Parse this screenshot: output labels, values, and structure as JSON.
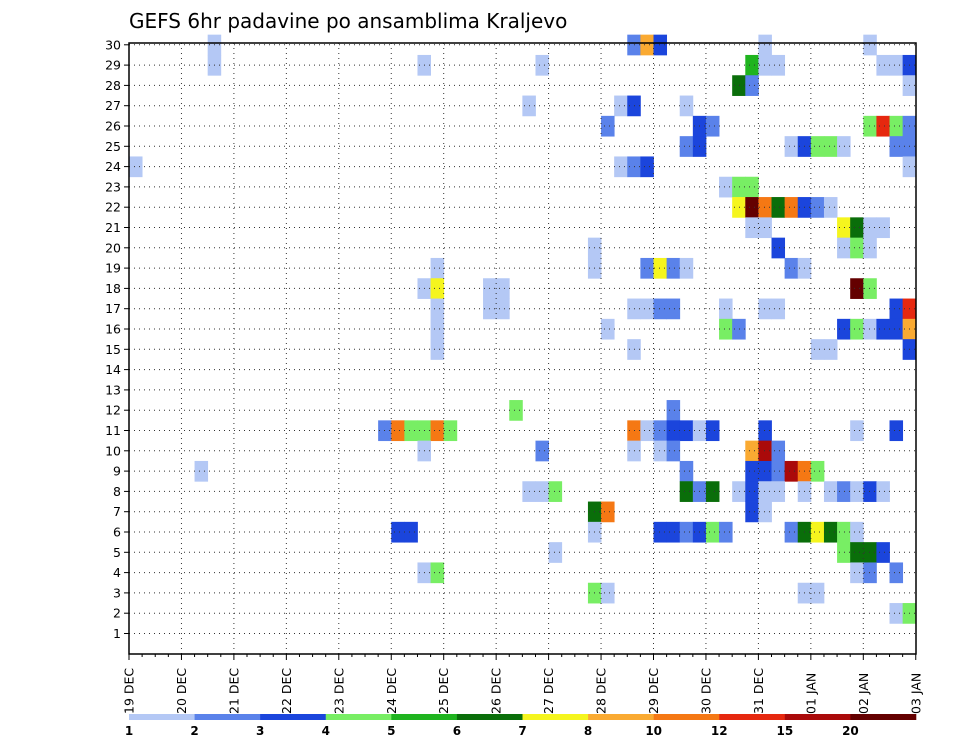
{
  "chart_data": {
    "type": "heatmap",
    "title": "GEFS 6hr padavine po ansamblima Kraljevo",
    "xlabel": "",
    "ylabel": "",
    "y_ticks": [
      "1",
      "2",
      "3",
      "4",
      "5",
      "6",
      "7",
      "8",
      "9",
      "10",
      "11",
      "12",
      "13",
      "14",
      "15",
      "16",
      "17",
      "18",
      "19",
      "20",
      "21",
      "22",
      "23",
      "24",
      "25",
      "26",
      "27",
      "28",
      "29",
      "30"
    ],
    "x_ticks": [
      "19 DEC",
      "20 DEC",
      "21 DEC",
      "22 DEC",
      "23 DEC",
      "24 DEC",
      "25 DEC",
      "26 DEC",
      "27 DEC",
      "28 DEC",
      "29 DEC",
      "30 DEC",
      "31 DEC",
      "01 JAN",
      "02 JAN",
      "03 JAN"
    ],
    "x_unit": "6-hour step from 19 DEC 00UTC",
    "legend": {
      "labels": [
        "1",
        "2",
        "3",
        "4",
        "5",
        "6",
        "7",
        "8",
        "10",
        "12",
        "15",
        "20"
      ],
      "colors": [
        "#b4c8f5",
        "#5a82ea",
        "#1b45dc",
        "#78ee64",
        "#1fb41f",
        "#0a6e0a",
        "#f5f51e",
        "#faaa32",
        "#f57814",
        "#e6280f",
        "#aa0a0a",
        "#640000"
      ]
    },
    "grid": true,
    "cells": [
      {
        "x": 7,
        "y": 29,
        "v": 1
      },
      {
        "x": 7,
        "y": 30,
        "v": 1
      },
      {
        "x": 23,
        "y": 29,
        "v": 1
      },
      {
        "x": 32,
        "y": 29,
        "v": 1
      },
      {
        "x": 49,
        "y": 30,
        "v": 1
      },
      {
        "x": 57,
        "y": 30,
        "v": 1
      },
      {
        "x": 59,
        "y": 29,
        "v": 1
      },
      {
        "x": 39,
        "y": 30,
        "v": 2
      },
      {
        "x": 40,
        "y": 30,
        "v": 8
      },
      {
        "x": 41,
        "y": 30,
        "v": 3
      },
      {
        "x": 48,
        "y": 29,
        "v": 5
      },
      {
        "x": 49,
        "y": 29,
        "v": 1
      },
      {
        "x": 50,
        "y": 29,
        "v": 1
      },
      {
        "x": 58,
        "y": 29,
        "v": 1
      },
      {
        "x": 60,
        "y": 29,
        "v": 3
      },
      {
        "x": 47,
        "y": 28,
        "v": 6
      },
      {
        "x": 48,
        "y": 28,
        "v": 2
      },
      {
        "x": 60,
        "y": 28,
        "v": 1
      },
      {
        "x": 31,
        "y": 27,
        "v": 1
      },
      {
        "x": 38,
        "y": 27,
        "v": 1
      },
      {
        "x": 39,
        "y": 27,
        "v": 3
      },
      {
        "x": 43,
        "y": 27,
        "v": 1
      },
      {
        "x": 37,
        "y": 26,
        "v": 2
      },
      {
        "x": 44,
        "y": 26,
        "v": 3
      },
      {
        "x": 45,
        "y": 26,
        "v": 2
      },
      {
        "x": 57,
        "y": 26,
        "v": 4
      },
      {
        "x": 58,
        "y": 26,
        "v": 12
      },
      {
        "x": 59,
        "y": 26,
        "v": 4
      },
      {
        "x": 60,
        "y": 26,
        "v": 2
      },
      {
        "x": 43,
        "y": 25,
        "v": 2
      },
      {
        "x": 44,
        "y": 25,
        "v": 3
      },
      {
        "x": 51,
        "y": 25,
        "v": 1
      },
      {
        "x": 52,
        "y": 25,
        "v": 3
      },
      {
        "x": 53,
        "y": 25,
        "v": 4
      },
      {
        "x": 54,
        "y": 25,
        "v": 4
      },
      {
        "x": 55,
        "y": 25,
        "v": 1
      },
      {
        "x": 59,
        "y": 25,
        "v": 2
      },
      {
        "x": 60,
        "y": 25,
        "v": 2
      },
      {
        "x": 1,
        "y": 24,
        "v": 1
      },
      {
        "x": 38,
        "y": 24,
        "v": 1
      },
      {
        "x": 39,
        "y": 24,
        "v": 2
      },
      {
        "x": 40,
        "y": 24,
        "v": 3
      },
      {
        "x": 60,
        "y": 24,
        "v": 1
      },
      {
        "x": 46,
        "y": 23,
        "v": 1
      },
      {
        "x": 47,
        "y": 23,
        "v": 4
      },
      {
        "x": 48,
        "y": 23,
        "v": 4
      },
      {
        "x": 47,
        "y": 22,
        "v": 7
      },
      {
        "x": 48,
        "y": 22,
        "v": 20
      },
      {
        "x": 49,
        "y": 22,
        "v": 10
      },
      {
        "x": 50,
        "y": 22,
        "v": 6
      },
      {
        "x": 51,
        "y": 22,
        "v": 10
      },
      {
        "x": 52,
        "y": 22,
        "v": 3
      },
      {
        "x": 53,
        "y": 22,
        "v": 2
      },
      {
        "x": 54,
        "y": 22,
        "v": 1
      },
      {
        "x": 48,
        "y": 21,
        "v": 1
      },
      {
        "x": 49,
        "y": 21,
        "v": 1
      },
      {
        "x": 55,
        "y": 21,
        "v": 7
      },
      {
        "x": 56,
        "y": 21,
        "v": 6
      },
      {
        "x": 57,
        "y": 21,
        "v": 1
      },
      {
        "x": 58,
        "y": 21,
        "v": 1
      },
      {
        "x": 36,
        "y": 20,
        "v": 1
      },
      {
        "x": 50,
        "y": 20,
        "v": 3
      },
      {
        "x": 55,
        "y": 20,
        "v": 1
      },
      {
        "x": 56,
        "y": 20,
        "v": 4
      },
      {
        "x": 57,
        "y": 20,
        "v": 1
      },
      {
        "x": 24,
        "y": 19,
        "v": 1
      },
      {
        "x": 36,
        "y": 19,
        "v": 1
      },
      {
        "x": 40,
        "y": 19,
        "v": 2
      },
      {
        "x": 41,
        "y": 19,
        "v": 7
      },
      {
        "x": 42,
        "y": 19,
        "v": 2
      },
      {
        "x": 43,
        "y": 19,
        "v": 1
      },
      {
        "x": 51,
        "y": 19,
        "v": 2
      },
      {
        "x": 52,
        "y": 19,
        "v": 1
      },
      {
        "x": 23,
        "y": 18,
        "v": 1
      },
      {
        "x": 24,
        "y": 18,
        "v": 7
      },
      {
        "x": 28,
        "y": 18,
        "v": 1
      },
      {
        "x": 29,
        "y": 18,
        "v": 1
      },
      {
        "x": 56,
        "y": 18,
        "v": 20
      },
      {
        "x": 57,
        "y": 18,
        "v": 4
      },
      {
        "x": 24,
        "y": 17,
        "v": 1
      },
      {
        "x": 28,
        "y": 17,
        "v": 1
      },
      {
        "x": 29,
        "y": 17,
        "v": 1
      },
      {
        "x": 39,
        "y": 17,
        "v": 1
      },
      {
        "x": 40,
        "y": 17,
        "v": 1
      },
      {
        "x": 41,
        "y": 17,
        "v": 2
      },
      {
        "x": 42,
        "y": 17,
        "v": 2
      },
      {
        "x": 46,
        "y": 17,
        "v": 1
      },
      {
        "x": 49,
        "y": 17,
        "v": 1
      },
      {
        "x": 50,
        "y": 17,
        "v": 1
      },
      {
        "x": 59,
        "y": 17,
        "v": 3
      },
      {
        "x": 60,
        "y": 17,
        "v": 12
      },
      {
        "x": 24,
        "y": 16,
        "v": 1
      },
      {
        "x": 37,
        "y": 16,
        "v": 1
      },
      {
        "x": 46,
        "y": 16,
        "v": 4
      },
      {
        "x": 47,
        "y": 16,
        "v": 2
      },
      {
        "x": 55,
        "y": 16,
        "v": 3
      },
      {
        "x": 56,
        "y": 16,
        "v": 4
      },
      {
        "x": 57,
        "y": 16,
        "v": 1
      },
      {
        "x": 58,
        "y": 16,
        "v": 3
      },
      {
        "x": 59,
        "y": 16,
        "v": 3
      },
      {
        "x": 60,
        "y": 16,
        "v": 8
      },
      {
        "x": 24,
        "y": 15,
        "v": 1
      },
      {
        "x": 39,
        "y": 15,
        "v": 1
      },
      {
        "x": 53,
        "y": 15,
        "v": 1
      },
      {
        "x": 54,
        "y": 15,
        "v": 1
      },
      {
        "x": 60,
        "y": 15,
        "v": 3
      },
      {
        "x": 30,
        "y": 12,
        "v": 4
      },
      {
        "x": 42,
        "y": 12,
        "v": 2
      },
      {
        "x": 20,
        "y": 11,
        "v": 2
      },
      {
        "x": 21,
        "y": 11,
        "v": 10
      },
      {
        "x": 22,
        "y": 11,
        "v": 4
      },
      {
        "x": 23,
        "y": 11,
        "v": 4
      },
      {
        "x": 24,
        "y": 11,
        "v": 10
      },
      {
        "x": 25,
        "y": 11,
        "v": 4
      },
      {
        "x": 39,
        "y": 11,
        "v": 10
      },
      {
        "x": 40,
        "y": 11,
        "v": 1
      },
      {
        "x": 41,
        "y": 11,
        "v": 2
      },
      {
        "x": 42,
        "y": 11,
        "v": 3
      },
      {
        "x": 43,
        "y": 11,
        "v": 3
      },
      {
        "x": 44,
        "y": 11,
        "v": 1
      },
      {
        "x": 45,
        "y": 11,
        "v": 3
      },
      {
        "x": 49,
        "y": 11,
        "v": 3
      },
      {
        "x": 56,
        "y": 11,
        "v": 1
      },
      {
        "x": 59,
        "y": 11,
        "v": 3
      },
      {
        "x": 23,
        "y": 10,
        "v": 1
      },
      {
        "x": 32,
        "y": 10,
        "v": 2
      },
      {
        "x": 39,
        "y": 10,
        "v": 1
      },
      {
        "x": 41,
        "y": 10,
        "v": 1
      },
      {
        "x": 42,
        "y": 10,
        "v": 2
      },
      {
        "x": 48,
        "y": 10,
        "v": 8
      },
      {
        "x": 49,
        "y": 10,
        "v": 15
      },
      {
        "x": 50,
        "y": 10,
        "v": 2
      },
      {
        "x": 6,
        "y": 9,
        "v": 1
      },
      {
        "x": 43,
        "y": 9,
        "v": 2
      },
      {
        "x": 48,
        "y": 9,
        "v": 3
      },
      {
        "x": 49,
        "y": 9,
        "v": 3
      },
      {
        "x": 50,
        "y": 9,
        "v": 2
      },
      {
        "x": 51,
        "y": 9,
        "v": 15
      },
      {
        "x": 52,
        "y": 9,
        "v": 10
      },
      {
        "x": 53,
        "y": 9,
        "v": 4
      },
      {
        "x": 31,
        "y": 8,
        "v": 1
      },
      {
        "x": 32,
        "y": 8,
        "v": 1
      },
      {
        "x": 33,
        "y": 8,
        "v": 4
      },
      {
        "x": 43,
        "y": 8,
        "v": 6
      },
      {
        "x": 44,
        "y": 8,
        "v": 2
      },
      {
        "x": 45,
        "y": 8,
        "v": 6
      },
      {
        "x": 47,
        "y": 8,
        "v": 1
      },
      {
        "x": 48,
        "y": 8,
        "v": 3
      },
      {
        "x": 49,
        "y": 8,
        "v": 1
      },
      {
        "x": 50,
        "y": 8,
        "v": 1
      },
      {
        "x": 52,
        "y": 8,
        "v": 1
      },
      {
        "x": 54,
        "y": 8,
        "v": 1
      },
      {
        "x": 55,
        "y": 8,
        "v": 2
      },
      {
        "x": 56,
        "y": 8,
        "v": 1
      },
      {
        "x": 57,
        "y": 8,
        "v": 3
      },
      {
        "x": 58,
        "y": 8,
        "v": 1
      },
      {
        "x": 36,
        "y": 7,
        "v": 6
      },
      {
        "x": 37,
        "y": 7,
        "v": 10
      },
      {
        "x": 48,
        "y": 7,
        "v": 3
      },
      {
        "x": 49,
        "y": 7,
        "v": 1
      },
      {
        "x": 21,
        "y": 6,
        "v": 3
      },
      {
        "x": 22,
        "y": 6,
        "v": 3
      },
      {
        "x": 36,
        "y": 6,
        "v": 1
      },
      {
        "x": 41,
        "y": 6,
        "v": 3
      },
      {
        "x": 42,
        "y": 6,
        "v": 3
      },
      {
        "x": 43,
        "y": 6,
        "v": 2
      },
      {
        "x": 44,
        "y": 6,
        "v": 3
      },
      {
        "x": 45,
        "y": 6,
        "v": 4
      },
      {
        "x": 46,
        "y": 6,
        "v": 2
      },
      {
        "x": 51,
        "y": 6,
        "v": 2
      },
      {
        "x": 52,
        "y": 6,
        "v": 6
      },
      {
        "x": 53,
        "y": 6,
        "v": 7
      },
      {
        "x": 54,
        "y": 6,
        "v": 6
      },
      {
        "x": 55,
        "y": 6,
        "v": 4
      },
      {
        "x": 56,
        "y": 6,
        "v": 1
      },
      {
        "x": 33,
        "y": 5,
        "v": 1
      },
      {
        "x": 55,
        "y": 5,
        "v": 4
      },
      {
        "x": 56,
        "y": 5,
        "v": 6
      },
      {
        "x": 57,
        "y": 5,
        "v": 6
      },
      {
        "x": 58,
        "y": 5,
        "v": 3
      },
      {
        "x": 23,
        "y": 4,
        "v": 1
      },
      {
        "x": 24,
        "y": 4,
        "v": 4
      },
      {
        "x": 56,
        "y": 4,
        "v": 1
      },
      {
        "x": 57,
        "y": 4,
        "v": 2
      },
      {
        "x": 59,
        "y": 4,
        "v": 2
      },
      {
        "x": 36,
        "y": 3,
        "v": 4
      },
      {
        "x": 37,
        "y": 3,
        "v": 1
      },
      {
        "x": 52,
        "y": 3,
        "v": 1
      },
      {
        "x": 53,
        "y": 3,
        "v": 1
      },
      {
        "x": 59,
        "y": 2,
        "v": 1
      },
      {
        "x": 60,
        "y": 2,
        "v": 4
      }
    ]
  }
}
